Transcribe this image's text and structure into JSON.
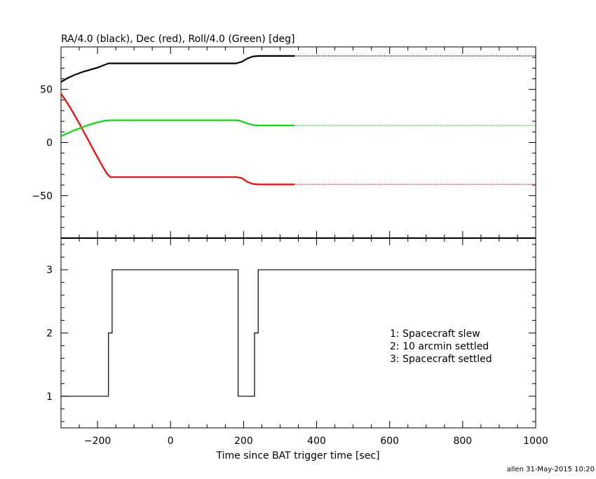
{
  "footer": "allen 31-May-2015 10:20",
  "chart_data": [
    {
      "type": "line",
      "title": "RA/4.0 (black), Dec (red), Roll/4.0 (Green) [deg]",
      "xlim": [
        -300,
        1000
      ],
      "ylim": [
        -90,
        90
      ],
      "y_tick_labels": [
        "50",
        "0",
        "−50"
      ],
      "y_ticks": [
        50,
        0,
        -50
      ],
      "colors": {
        "ra": "#000000",
        "dec": "#ff0000",
        "roll": "#00e000"
      },
      "series": [
        {
          "key": "ra",
          "x": [
            -300,
            -280,
            -260,
            -240,
            -220,
            -200,
            -185,
            -170,
            -150,
            -100,
            0,
            100,
            180,
            195,
            210,
            225,
            240,
            260,
            340,
            1000
          ],
          "y": [
            57,
            61,
            64,
            66.5,
            68.5,
            70.5,
            72.5,
            74.5,
            74.5,
            74.5,
            74.5,
            74.5,
            74.5,
            76,
            79,
            81,
            81.5,
            81.5,
            81.5,
            81.5
          ],
          "solid_until": 340
        },
        {
          "key": "dec",
          "x": [
            -300,
            -290,
            -275,
            -250,
            -225,
            -200,
            -185,
            -175,
            -165,
            -150,
            0,
            100,
            180,
            195,
            210,
            225,
            240,
            260,
            340,
            1000
          ],
          "y": [
            46,
            41,
            33,
            18,
            2,
            -14,
            -23,
            -29,
            -32.5,
            -32.5,
            -32.5,
            -32.5,
            -32.5,
            -33.5,
            -37,
            -39,
            -39.5,
            -39.5,
            -39.5,
            -39.5
          ],
          "solid_until": 340
        },
        {
          "key": "roll",
          "x": [
            -300,
            -280,
            -260,
            -240,
            -220,
            -200,
            -180,
            -165,
            -150,
            0,
            100,
            180,
            195,
            210,
            225,
            240,
            260,
            340,
            1000
          ],
          "y": [
            6,
            9,
            12,
            14.5,
            17,
            19,
            20.5,
            21,
            21,
            21,
            21,
            21,
            20,
            18,
            16.5,
            16,
            16,
            16,
            16
          ],
          "solid_until": 340
        }
      ]
    },
    {
      "type": "line",
      "xlabel": "Time since BAT trigger time [sec]",
      "xlim": [
        -300,
        1000
      ],
      "ylim": [
        0.5,
        3.5
      ],
      "x_ticks": [
        -200,
        0,
        200,
        400,
        600,
        800,
        1000
      ],
      "x_tick_labels": [
        "−200",
        "0",
        "200",
        "400",
        "600",
        "800",
        "1000"
      ],
      "y_ticks": [
        1,
        2,
        3
      ],
      "y_tick_labels": [
        "1",
        "2",
        "3"
      ],
      "legend": [
        "1: Spacecraft slew",
        "2: 10 arcmin settled",
        "3: Spacecraft settled"
      ],
      "series": [
        {
          "key": "status",
          "step": true,
          "x": [
            -300,
            -170,
            -160,
            -150,
            185,
            230,
            240,
            1000
          ],
          "y": [
            1,
            2,
            3,
            3,
            1,
            2,
            3,
            3
          ]
        }
      ]
    }
  ]
}
